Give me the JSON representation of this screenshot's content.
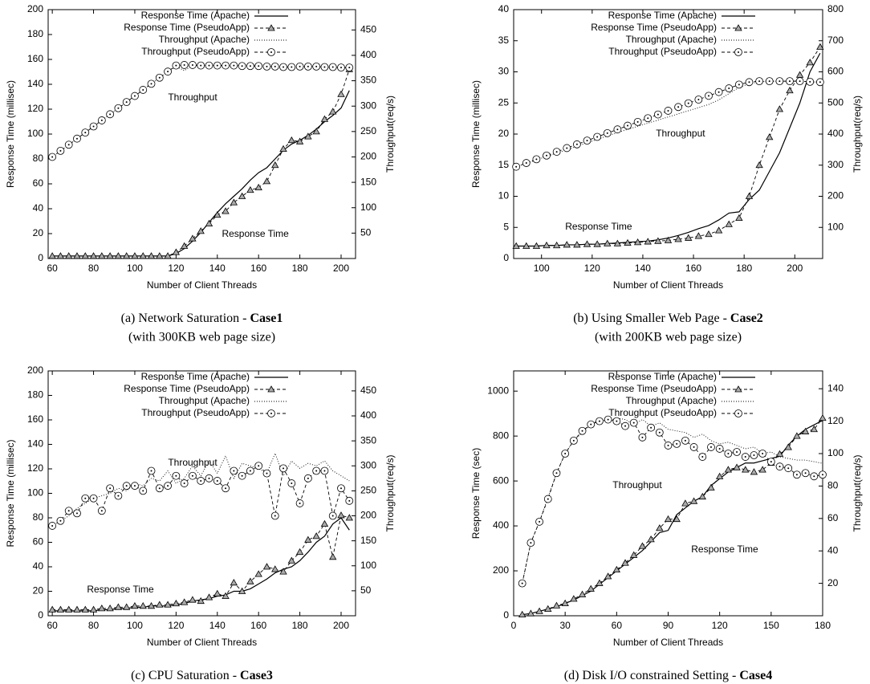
{
  "chart_data": [
    {
      "type": "line",
      "xlabel": "Number of Client Threads",
      "ylabel": "Response Time (millisec)",
      "y2label": "Throughput(req/s)",
      "caption": "(a) Network Saturation - ",
      "caption_bold": "Case1",
      "caption_line2": "(with 300KB web page size)",
      "annotations": [
        "Throughput",
        "Response Time"
      ],
      "legend": "upper right",
      "xlim": [
        58,
        207
      ],
      "xticks": [
        60,
        80,
        100,
        120,
        140,
        160,
        180,
        200
      ],
      "ylim": [
        0,
        200
      ],
      "yticks": [
        0,
        20,
        40,
        60,
        80,
        100,
        120,
        140,
        160,
        180,
        200
      ],
      "y2lim": [
        0,
        490
      ],
      "y2ticks": [
        50,
        100,
        150,
        200,
        250,
        300,
        350,
        400,
        450
      ],
      "x": [
        60,
        64,
        68,
        72,
        76,
        80,
        84,
        88,
        92,
        96,
        100,
        104,
        108,
        112,
        116,
        120,
        124,
        128,
        132,
        136,
        140,
        144,
        148,
        152,
        156,
        160,
        164,
        168,
        172,
        176,
        180,
        184,
        188,
        192,
        196,
        200,
        204
      ],
      "series": [
        {
          "name": "Response Time (Apache)",
          "color": "#000000",
          "dash": "solid",
          "marker": "none",
          "axis": "y",
          "values": [
            2,
            2,
            2,
            2,
            2,
            2,
            2,
            2,
            2,
            2,
            2,
            2,
            2,
            2,
            2,
            4,
            8,
            14,
            21,
            29,
            37,
            44,
            50,
            56,
            63,
            69,
            73,
            80,
            87,
            92,
            95,
            99,
            104,
            110,
            115,
            121,
            135
          ]
        },
        {
          "name": "Response Time (PseudoApp)",
          "color": "#000000",
          "dash": "dashed",
          "marker": "triangle",
          "axis": "y",
          "values": [
            2,
            2,
            2,
            2,
            2,
            2,
            2,
            2,
            2,
            2,
            2,
            2,
            2,
            2,
            2,
            5,
            10,
            16,
            22,
            28,
            35,
            38,
            45,
            50,
            55,
            57,
            62,
            75,
            88,
            95,
            94,
            98,
            102,
            112,
            118,
            132,
            152
          ]
        },
        {
          "name": "Throughput (Apache)",
          "color": "#000000",
          "dash": "dotted",
          "marker": "none",
          "axis": "y2",
          "values": [
            200,
            212,
            224,
            236,
            248,
            260,
            272,
            284,
            296,
            308,
            320,
            332,
            344,
            356,
            368,
            378,
            370,
            380,
            381,
            381,
            380,
            380,
            380,
            380,
            379,
            379,
            379,
            378,
            378,
            377,
            376,
            378,
            378,
            377,
            377,
            376,
            375
          ]
        },
        {
          "name": "Throughput (PseudoApp)",
          "color": "#000000",
          "dash": "dashed",
          "marker": "circle",
          "axis": "y2",
          "values": [
            200,
            212,
            224,
            236,
            248,
            260,
            272,
            284,
            296,
            308,
            320,
            332,
            344,
            356,
            368,
            380,
            381,
            381,
            380,
            380,
            380,
            380,
            380,
            379,
            379,
            379,
            378,
            378,
            377,
            377,
            378,
            378,
            378,
            377,
            377,
            376,
            376
          ]
        }
      ]
    },
    {
      "type": "line",
      "xlabel": "Number of Client Threads",
      "ylabel": "Response Time (millisec)",
      "y2label": "Throughput(req/s)",
      "caption": "(b) Using Smaller Web Page - ",
      "caption_bold": "Case2",
      "caption_line2": "(with 200KB web page size)",
      "annotations": [
        "Throughput",
        "Response Time"
      ],
      "legend": "upper right",
      "xlim": [
        89,
        211
      ],
      "xticks": [
        100,
        120,
        140,
        160,
        180,
        200
      ],
      "ylim": [
        0,
        40
      ],
      "yticks": [
        0,
        5,
        10,
        15,
        20,
        25,
        30,
        35,
        40
      ],
      "y2lim": [
        0,
        800
      ],
      "y2ticks": [
        100,
        200,
        300,
        400,
        500,
        600,
        700,
        800
      ],
      "x": [
        90,
        94,
        98,
        102,
        106,
        110,
        114,
        118,
        122,
        126,
        130,
        134,
        138,
        142,
        146,
        150,
        154,
        158,
        162,
        166,
        170,
        174,
        178,
        182,
        186,
        190,
        194,
        198,
        202,
        206,
        210
      ],
      "series": [
        {
          "name": "Response Time (Apache)",
          "color": "#000000",
          "dash": "solid",
          "marker": "none",
          "axis": "y",
          "values": [
            2,
            2,
            2,
            2.1,
            2.1,
            2.2,
            2.2,
            2.3,
            2.3,
            2.4,
            2.5,
            2.6,
            2.7,
            2.8,
            3,
            3.3,
            3.7,
            4.2,
            4.8,
            5.3,
            6.2,
            7.3,
            7.5,
            9.5,
            11,
            14,
            17,
            21,
            25,
            30,
            33
          ]
        },
        {
          "name": "Response Time (PseudoApp)",
          "color": "#000000",
          "dash": "dashed",
          "marker": "triangle",
          "axis": "y",
          "values": [
            2,
            2,
            2,
            2.1,
            2.1,
            2.2,
            2.2,
            2.3,
            2.3,
            2.4,
            2.4,
            2.5,
            2.6,
            2.7,
            2.8,
            2.9,
            3.1,
            3.3,
            3.6,
            3.9,
            4.5,
            5.5,
            6.5,
            10,
            15,
            19.5,
            24,
            27,
            29.5,
            31.5,
            34
          ]
        },
        {
          "name": "Throughput (Apache)",
          "color": "#000000",
          "dash": "dotted",
          "marker": "none",
          "axis": "y2",
          "values": [
            295,
            306,
            317,
            328,
            339,
            350,
            361,
            372,
            383,
            394,
            405,
            415,
            425,
            435,
            445,
            455,
            465,
            475,
            485,
            495,
            510,
            530,
            550,
            562,
            568,
            570,
            570,
            570,
            570,
            568,
            567
          ]
        },
        {
          "name": "Throughput (PseudoApp)",
          "color": "#000000",
          "dash": "dashed",
          "marker": "circle",
          "axis": "y2",
          "values": [
            295,
            307,
            319,
            331,
            343,
            355,
            367,
            379,
            391,
            403,
            415,
            427,
            439,
            451,
            463,
            475,
            487,
            499,
            511,
            523,
            535,
            547,
            559,
            567,
            570,
            570,
            570,
            570,
            570,
            568,
            567
          ]
        }
      ]
    },
    {
      "type": "line",
      "xlabel": "Number of Client Threads",
      "ylabel": "Response Time (millisec)",
      "y2label": "Throughput(req/s)",
      "caption": "(c) CPU Saturation - ",
      "caption_bold": "Case3",
      "annotations": [
        "Throughput",
        "Response Time"
      ],
      "legend": "upper right",
      "xlim": [
        58,
        207
      ],
      "xticks": [
        60,
        80,
        100,
        120,
        140,
        160,
        180,
        200
      ],
      "ylim": [
        0,
        200
      ],
      "yticks": [
        0,
        20,
        40,
        60,
        80,
        100,
        120,
        140,
        160,
        180,
        200
      ],
      "y2lim": [
        0,
        490
      ],
      "y2ticks": [
        50,
        100,
        150,
        200,
        250,
        300,
        350,
        400,
        450
      ],
      "x": [
        60,
        64,
        68,
        72,
        76,
        80,
        84,
        88,
        92,
        96,
        100,
        104,
        108,
        112,
        116,
        120,
        124,
        128,
        132,
        136,
        140,
        144,
        148,
        152,
        156,
        160,
        164,
        168,
        172,
        176,
        180,
        184,
        188,
        192,
        196,
        200,
        204
      ],
      "series": [
        {
          "name": "Response Time (Apache)",
          "color": "#000000",
          "dash": "solid",
          "marker": "none",
          "axis": "y",
          "values": [
            4,
            4,
            4,
            4,
            4,
            4,
            5,
            5,
            6,
            6,
            7,
            7,
            8,
            8,
            8,
            9,
            10,
            12,
            13,
            14,
            16,
            17,
            20,
            20,
            22,
            26,
            30,
            35,
            38,
            40,
            45,
            52,
            60,
            65,
            75,
            80,
            70
          ]
        },
        {
          "name": "Response Time (PseudoApp)",
          "color": "#000000",
          "dash": "dashed",
          "marker": "triangle",
          "axis": "y",
          "values": [
            5,
            5,
            5,
            5,
            5,
            5,
            6,
            6,
            7,
            7,
            8,
            8,
            8,
            9,
            9,
            10,
            11,
            13,
            12,
            15,
            18,
            16,
            27,
            20,
            28,
            34,
            40,
            38,
            36,
            45,
            52,
            62,
            65,
            75,
            48,
            82,
            80
          ]
        },
        {
          "name": "Throughput (Apache)",
          "color": "#000000",
          "dash": "dotted",
          "marker": "none",
          "axis": "y2",
          "values": [
            180,
            190,
            200,
            215,
            225,
            235,
            240,
            245,
            255,
            250,
            265,
            260,
            275,
            270,
            290,
            265,
            275,
            300,
            280,
            310,
            285,
            320,
            275,
            305,
            300,
            295,
            285,
            325,
            280,
            310,
            295,
            305,
            300,
            310,
            290,
            280,
            270
          ]
        },
        {
          "name": "Throughput (PseudoApp)",
          "color": "#000000",
          "dash": "dashed",
          "marker": "circle",
          "axis": "y2",
          "values": [
            180,
            190,
            210,
            205,
            235,
            235,
            210,
            255,
            240,
            260,
            260,
            250,
            290,
            255,
            260,
            280,
            265,
            280,
            270,
            275,
            270,
            255,
            290,
            280,
            290,
            300,
            285,
            200,
            295,
            265,
            225,
            275,
            290,
            290,
            200,
            255,
            230
          ]
        }
      ]
    },
    {
      "type": "line",
      "xlabel": "Number of Client Threads",
      "ylabel": "Response Time (sec)",
      "y2label": "Throughput(req/s)",
      "caption": "(d) Disk I/O constrained Setting - ",
      "caption_bold": "Case4",
      "annotations": [
        "Throughput",
        "Response Time"
      ],
      "legend": "upper right",
      "xlim": [
        0,
        180
      ],
      "xticks": [
        0,
        30,
        60,
        90,
        120,
        150,
        180
      ],
      "ylim": [
        0,
        1090
      ],
      "yticks": [
        0,
        200,
        400,
        600,
        800,
        1000
      ],
      "y2lim": [
        0,
        151
      ],
      "y2ticks": [
        20,
        40,
        60,
        80,
        100,
        120,
        140
      ],
      "x": [
        5,
        10,
        15,
        20,
        25,
        30,
        35,
        40,
        45,
        50,
        55,
        60,
        65,
        70,
        75,
        80,
        85,
        90,
        95,
        100,
        105,
        110,
        115,
        120,
        125,
        130,
        135,
        140,
        145,
        150,
        155,
        160,
        165,
        170,
        175,
        180
      ],
      "series": [
        {
          "name": "Response Time (Apache)",
          "color": "#000000",
          "dash": "solid",
          "marker": "none",
          "axis": "y",
          "values": [
            5,
            10,
            20,
            30,
            40,
            55,
            70,
            90,
            110,
            140,
            170,
            200,
            230,
            260,
            290,
            330,
            370,
            380,
            450,
            480,
            510,
            530,
            580,
            610,
            640,
            660,
            680,
            680,
            690,
            700,
            710,
            760,
            800,
            830,
            850,
            870
          ]
        },
        {
          "name": "Response Time (PseudoApp)",
          "color": "#000000",
          "dash": "dashed",
          "marker": "triangle",
          "axis": "y",
          "values": [
            5,
            10,
            20,
            30,
            45,
            55,
            75,
            95,
            120,
            145,
            175,
            205,
            235,
            270,
            310,
            340,
            390,
            430,
            430,
            500,
            510,
            530,
            570,
            620,
            650,
            660,
            650,
            640,
            650,
            680,
            720,
            750,
            800,
            820,
            830,
            880
          ]
        },
        {
          "name": "Throughput (Apache)",
          "color": "#000000",
          "dash": "dotted",
          "marker": "none",
          "axis": "y2",
          "values": [
            20,
            45,
            58,
            73,
            88,
            100,
            108,
            113,
            118,
            121,
            120,
            122,
            121,
            118,
            121,
            117,
            119,
            115,
            114,
            113,
            110,
            112,
            108,
            106,
            107,
            105,
            103,
            104,
            100,
            101,
            98,
            97,
            96,
            96,
            95,
            94
          ]
        },
        {
          "name": "Throughput (PseudoApp)",
          "color": "#000000",
          "dash": "dashed",
          "marker": "circle",
          "axis": "y2",
          "values": [
            20,
            45,
            58,
            72,
            88,
            100,
            108,
            114,
            118,
            120,
            121,
            120,
            117,
            119,
            110,
            116,
            113,
            105,
            106,
            108,
            104,
            98,
            104,
            103,
            100,
            101,
            98,
            99,
            100,
            95,
            92,
            91,
            87,
            88,
            86,
            87
          ]
        }
      ]
    }
  ]
}
